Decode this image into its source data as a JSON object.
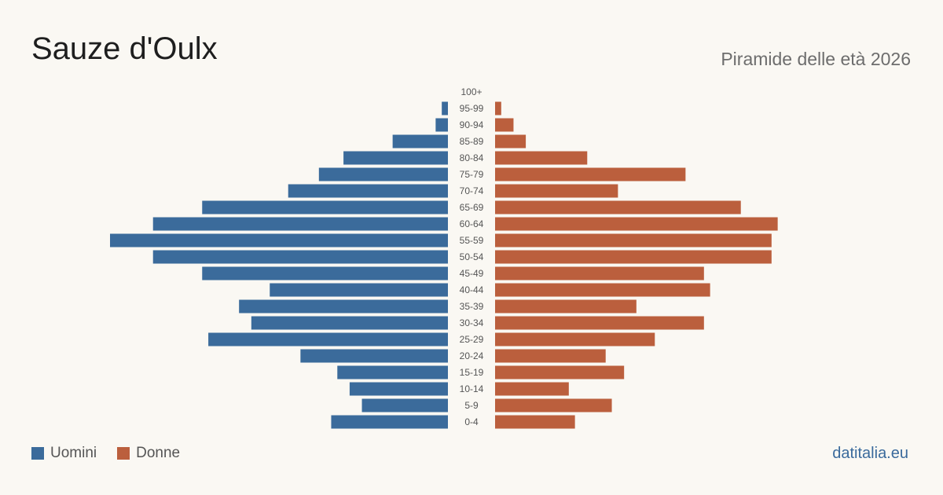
{
  "header": {
    "title": "Sauze d'Oulx",
    "subtitle": "Piramide delle età 2026"
  },
  "legend": {
    "men_label": "Uomini",
    "women_label": "Donne"
  },
  "brand": "datitalia.eu",
  "colors": {
    "men": "#3b6b9b",
    "women": "#bb5f3d",
    "label": "#555555"
  },
  "chart_data": {
    "type": "bar",
    "orientation": "horizontal-pyramid",
    "categories": [
      "100+",
      "95-99",
      "90-94",
      "85-89",
      "80-84",
      "75-79",
      "70-74",
      "65-69",
      "60-64",
      "55-59",
      "50-54",
      "45-49",
      "40-44",
      "35-39",
      "30-34",
      "25-29",
      "20-24",
      "15-19",
      "10-14",
      "5-9",
      "0-4"
    ],
    "series": [
      {
        "name": "Uomini",
        "values": [
          0,
          1,
          2,
          9,
          17,
          21,
          26,
          40,
          48,
          55,
          48,
          40,
          29,
          34,
          32,
          39,
          24,
          18,
          16,
          14,
          19
        ]
      },
      {
        "name": "Donne",
        "values": [
          0,
          1,
          3,
          5,
          15,
          31,
          20,
          40,
          46,
          45,
          45,
          34,
          35,
          23,
          34,
          26,
          18,
          21,
          12,
          19,
          13
        ]
      }
    ],
    "legend_position": "bottom-left",
    "grid": false
  }
}
